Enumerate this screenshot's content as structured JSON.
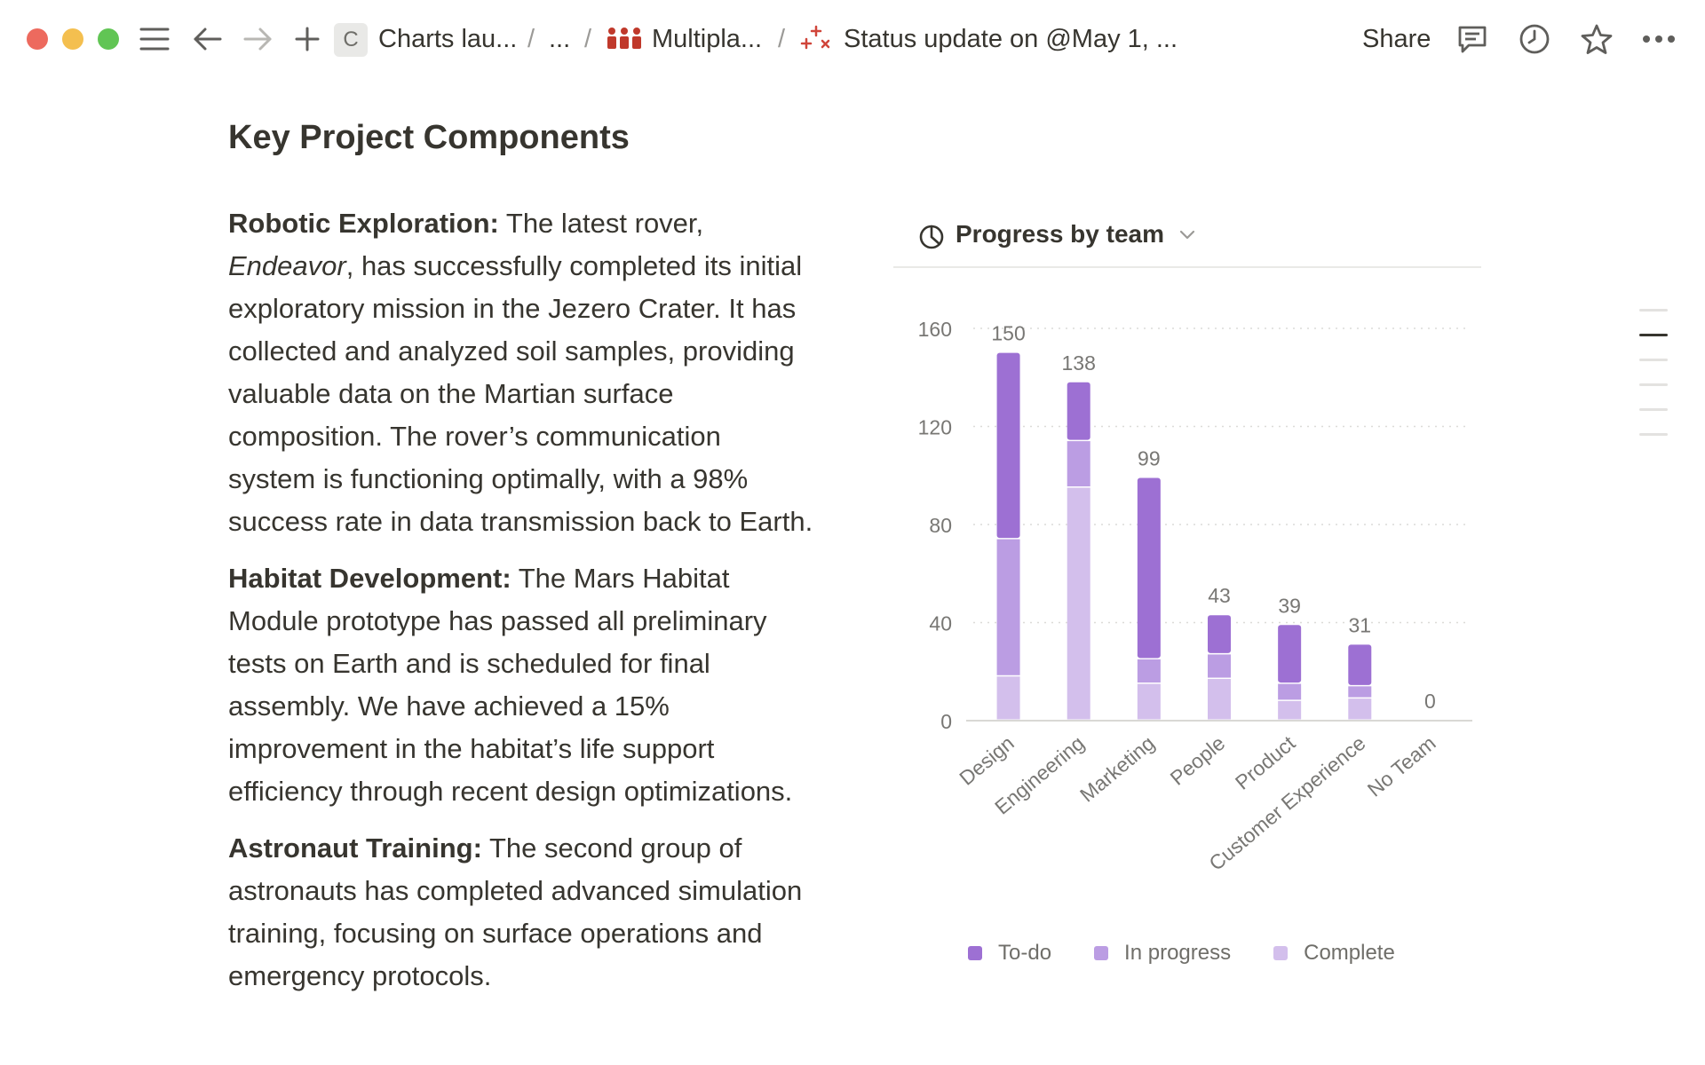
{
  "breadcrumb": {
    "workspace_badge": "C",
    "item1": "Charts lau...",
    "sep": "/",
    "ellipsis": "...",
    "item2": "Multipla...",
    "item3": "Status update on @May 1, ..."
  },
  "topbar": {
    "share_label": "Share"
  },
  "page": {
    "title": "Key Project Components",
    "paragraphs": [
      {
        "heading": "Robotic Exploration:",
        "lead": " The latest rover, ",
        "emphasis": "Endeavor",
        "body": ", has successfully completed its initial exploratory mission in the Jezero Crater. It has collected and analyzed soil samples, providing valuable data on the Martian surface composition. The rover’s communication system is functioning optimally, with a 98% success rate in data transmission back to Earth."
      },
      {
        "heading": "Habitat Development:",
        "body": " The Mars Habitat Module prototype has passed all preliminary tests on Earth and is scheduled for final assembly. We have achieved a 15% improvement in the habitat’s life support efficiency through recent design optimizations."
      },
      {
        "heading": "Astronaut Training:",
        "body": " The second group of astronauts has completed advanced simulation training, focusing on surface operations and emergency protocols."
      }
    ]
  },
  "chart_data": {
    "type": "bar",
    "stacked": true,
    "title": "Progress by team",
    "categories": [
      "Design",
      "Engineering",
      "Marketing",
      "People",
      "Product",
      "Customer Experience",
      "No Team"
    ],
    "totals": [
      150,
      138,
      99,
      43,
      39,
      31,
      0
    ],
    "series": [
      {
        "name": "Complete",
        "values": [
          18,
          95,
          15,
          17,
          8,
          9,
          0
        ],
        "color": "#d3bfec"
      },
      {
        "name": "In progress",
        "values": [
          56,
          19,
          10,
          10,
          7,
          5,
          0
        ],
        "color": "#bb9de3"
      },
      {
        "name": "To-do",
        "values": [
          76,
          24,
          74,
          16,
          24,
          17,
          0
        ],
        "color": "#9d70d3"
      }
    ],
    "y_ticks": [
      0,
      40,
      80,
      120,
      160
    ],
    "ylim": [
      0,
      160
    ],
    "grid": true,
    "legend_position": "bottom",
    "legend_order": [
      "To-do",
      "In progress",
      "Complete"
    ]
  },
  "icons": {
    "menu": "hamburger-icon",
    "back": "arrow-left-icon",
    "forward": "arrow-right-icon",
    "add": "plus-icon",
    "comments": "comment-icon",
    "history": "clock-icon",
    "favorite": "star-icon",
    "more": "ellipsis-icon",
    "chart": "pie-chart-icon",
    "dropdown": "chevron-down-icon"
  }
}
